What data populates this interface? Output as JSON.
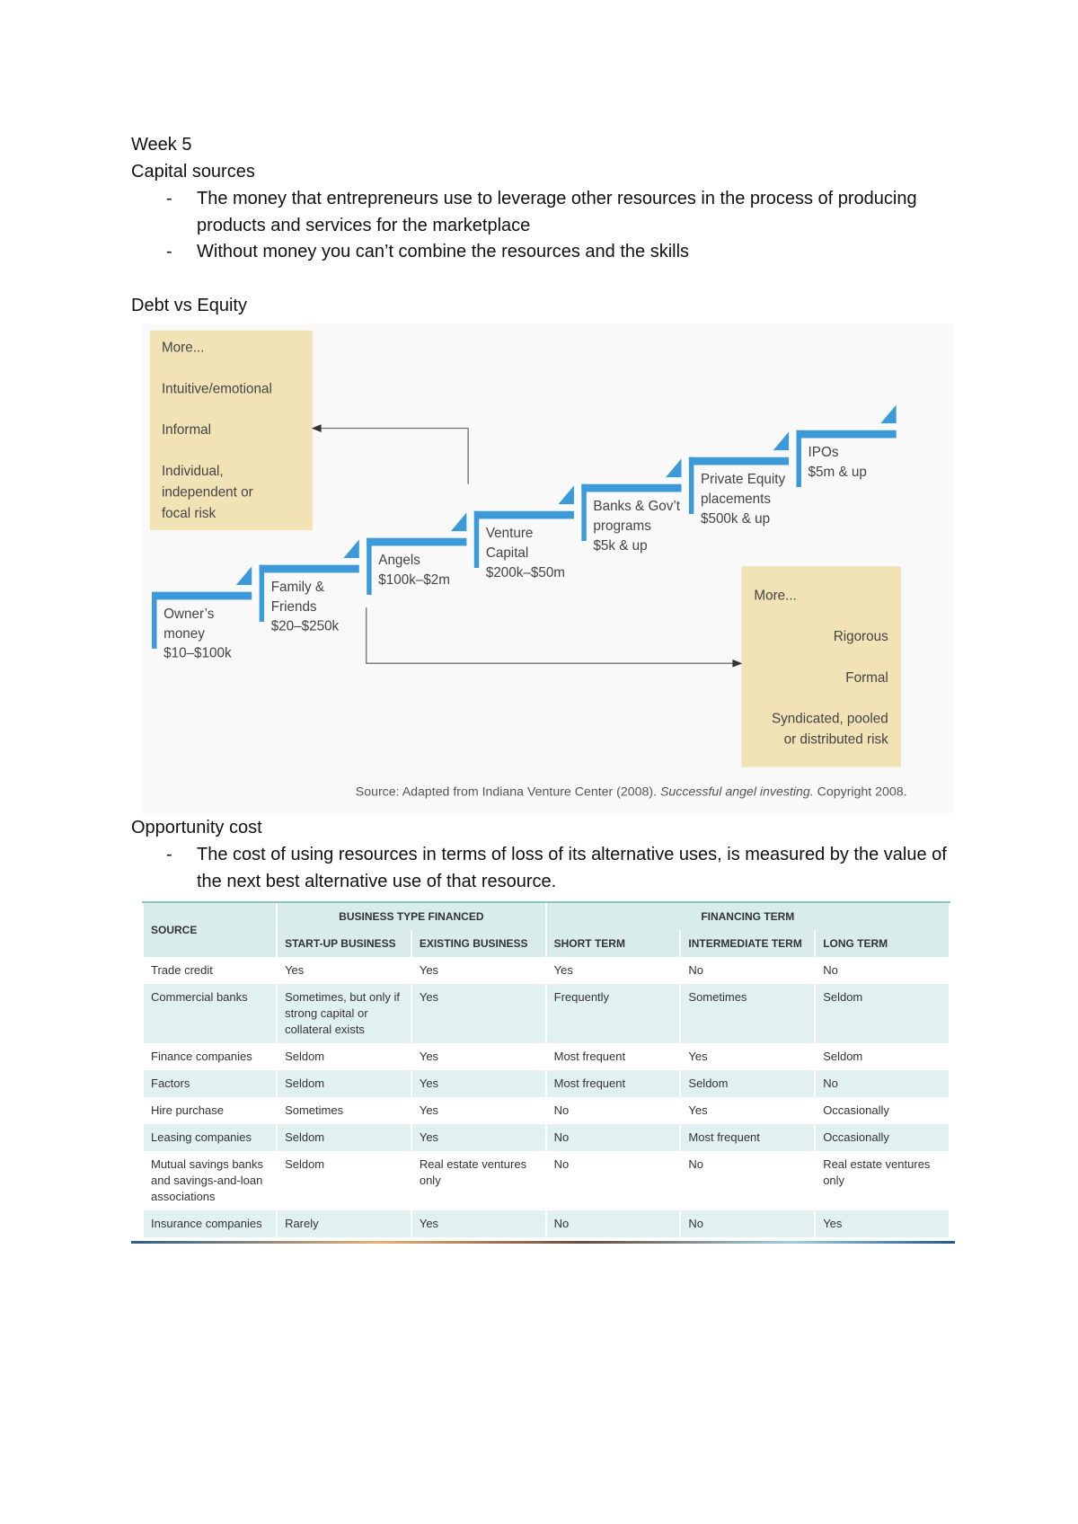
{
  "header": {
    "title": "Week 5",
    "subtitle": "Capital sources"
  },
  "capital_bullets": [
    "The money that entrepreneurs use to leverage other resources in the process of producing products and services for the marketplace",
    "Without money you can’t combine the resources and the skills"
  ],
  "debt_heading": "Debt vs Equity",
  "diagram": {
    "left_box": {
      "more": "More...",
      "items": [
        "Intuitive/emotional",
        "Informal"
      ],
      "risk_lines": [
        "Individual,",
        "independent or",
        "focal risk"
      ]
    },
    "right_box": {
      "more": "More...",
      "items": [
        "Rigorous",
        "Formal"
      ],
      "risk_lines": [
        "Syndicated, pooled",
        "or distributed risk"
      ]
    },
    "steps": [
      {
        "lines": [
          "Owner’s",
          "money",
          "$10–$100k"
        ]
      },
      {
        "lines": [
          "Family &",
          "Friends",
          "$20–$250k"
        ]
      },
      {
        "lines": [
          "Angels",
          "$100k–$2m"
        ]
      },
      {
        "lines": [
          "Venture",
          "Capital",
          "$200k–$50m"
        ]
      },
      {
        "lines": [
          "Banks & Gov’t",
          "programs",
          "$5k & up"
        ]
      },
      {
        "lines": [
          "Private Equity",
          "placements",
          "$500k & up"
        ]
      },
      {
        "lines": [
          "IPOs",
          "$5m & up"
        ]
      }
    ],
    "source": {
      "prefix": "Source: Adapted from Indiana Venture Center (2008).",
      "title": "Successful angel investing.",
      "suffix": "Copyright 2008."
    }
  },
  "opportunity_heading": "Opportunity cost",
  "opportunity_bullets": [
    "The cost of using resources in terms of loss of its alternative uses, is measured by the value of the next best alternative use of that resource."
  ],
  "table": {
    "header": {
      "source": "SOURCE",
      "groups": [
        "BUSINESS TYPE FINANCED",
        "FINANCING TERM"
      ],
      "columns": [
        "START-UP BUSINESS",
        "EXISTING BUSINESS",
        "SHORT TERM",
        "INTERMEDIATE TERM",
        "LONG TERM"
      ]
    },
    "rows": [
      [
        "Trade credit",
        "Yes",
        "Yes",
        "Yes",
        "No",
        "No"
      ],
      [
        "Commercial banks",
        "Sometimes, but only if strong capital or collateral exists",
        "Yes",
        "Frequently",
        "Sometimes",
        "Seldom"
      ],
      [
        "Finance companies",
        "Seldom",
        "Yes",
        "Most frequent",
        "Yes",
        "Seldom"
      ],
      [
        "Factors",
        "Seldom",
        "Yes",
        "Most frequent",
        "Seldom",
        "No"
      ],
      [
        "Hire purchase",
        "Sometimes",
        "Yes",
        "No",
        "Yes",
        "Occasionally"
      ],
      [
        "Leasing companies",
        "Seldom",
        "Yes",
        "No",
        "Most frequent",
        "Occasionally"
      ],
      [
        "Mutual savings banks and savings-and-loan associations",
        "Seldom",
        "Real estate ventures only",
        "No",
        "No",
        "Real estate ventures only"
      ],
      [
        "Insurance companies",
        "Rarely",
        "Yes",
        "No",
        "No",
        "Yes"
      ]
    ]
  }
}
